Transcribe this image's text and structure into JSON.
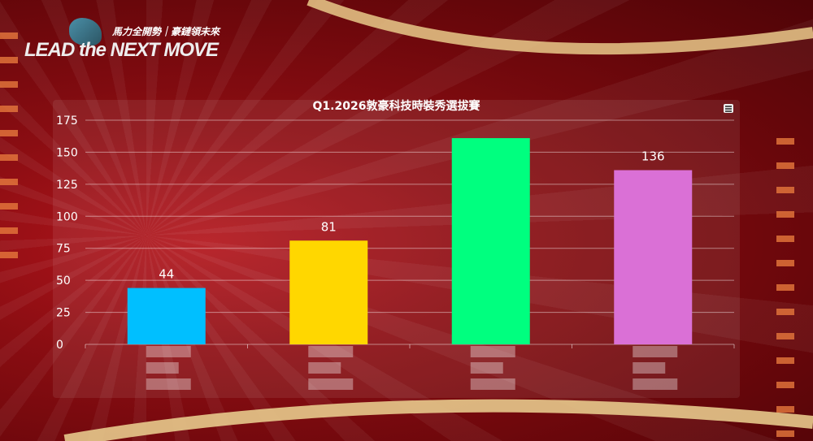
{
  "logo": {
    "tagline": "馬力全開勢｜豪鏈領未來",
    "slogan": "LEAD the NEXT MOVE"
  },
  "chart_data": {
    "type": "bar",
    "title": "Q1.2026敦豪科技時裝秀選拔賽",
    "categories": [
      "",
      "",
      "",
      ""
    ],
    "values": [
      44,
      81,
      161,
      136
    ],
    "data_labels": [
      "44",
      "81",
      "",
      "136"
    ],
    "colors": [
      "#00bfff",
      "#ffd700",
      "#00ff7f",
      "#da70d6"
    ],
    "ylim": [
      0,
      175
    ],
    "yticks": [
      "0",
      "25",
      "50",
      "75",
      "100",
      "125",
      "150",
      "175"
    ],
    "grid": true,
    "legend": "none",
    "xlabels_blurred": true
  },
  "menu_icon": "hamburger-menu-icon"
}
